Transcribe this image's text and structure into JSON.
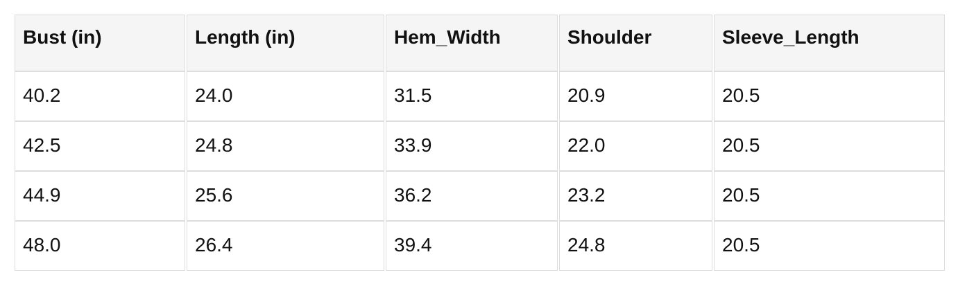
{
  "table": {
    "columns": [
      "Bust (in)",
      "Length (in)",
      "Hem_Width",
      "Shoulder",
      "Sleeve_Length"
    ],
    "rows": [
      [
        "40.2",
        "24.0",
        "31.5",
        "20.9",
        "20.5"
      ],
      [
        "42.5",
        "24.8",
        "33.9",
        "22.0",
        "20.5"
      ],
      [
        "44.9",
        "25.6",
        "36.2",
        "23.2",
        "20.5"
      ],
      [
        "48.0",
        "26.4",
        "39.4",
        "24.8",
        "20.5"
      ]
    ]
  },
  "chart_data": {
    "type": "table",
    "columns": [
      "Bust (in)",
      "Length (in)",
      "Hem_Width",
      "Shoulder",
      "Sleeve_Length"
    ],
    "rows": [
      [
        40.2,
        24.0,
        31.5,
        20.9,
        20.5
      ],
      [
        42.5,
        24.8,
        33.9,
        22.0,
        20.5
      ],
      [
        44.9,
        25.6,
        36.2,
        23.2,
        20.5
      ],
      [
        48.0,
        26.4,
        39.4,
        24.8,
        20.5
      ]
    ]
  },
  "colors": {
    "header_bg": "#f5f5f5",
    "border": "#dddddd",
    "text": "#111111",
    "page_bg": "#ffffff"
  }
}
